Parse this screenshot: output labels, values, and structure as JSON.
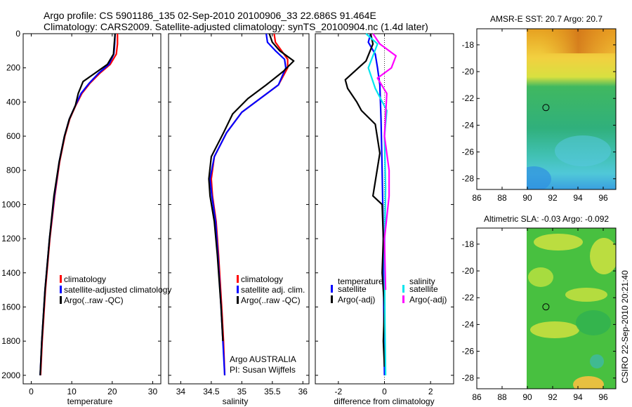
{
  "header": {
    "line1": "Argo profile: CS 5901186_135 02-Sep-2010 20100906_33 22.686S 91.464E",
    "line2": "Climatology: CARS2009. Satellite-adjusted climatology: synTS_20100904.nc (1.4d later)"
  },
  "colors": {
    "climatology": "#ff0000",
    "satellite": "#0000ff",
    "argo": "#000000",
    "salinity_satellite": "#00e5ee",
    "salinity_argo": "#ff00ff"
  },
  "chart_data": [
    {
      "id": "temperature",
      "type": "line",
      "xlabel": "temperature",
      "xlim": [
        -2,
        32
      ],
      "ylim": [
        2050,
        0
      ],
      "xticks": [
        "0",
        "10",
        "20",
        "30"
      ],
      "xtick_values": [
        0,
        10,
        20,
        30
      ],
      "yticks": [
        "0",
        "200",
        "400",
        "600",
        "800",
        "1000",
        "1200",
        "1400",
        "1600",
        "1800",
        "2000"
      ],
      "ytick_values": [
        0,
        200,
        400,
        600,
        800,
        1000,
        1200,
        1400,
        1600,
        1800,
        2000
      ],
      "legend": [
        "climatology",
        "satellite-adjusted climatology",
        "Argo(..raw -QC)"
      ],
      "series": [
        {
          "name": "climatology",
          "color": "#ff0000",
          "x": [
            21.3,
            21.3,
            21.0,
            19.5,
            17.0,
            14.5,
            12.5,
            11.0,
            9.5,
            8.3,
            7.0,
            5.8,
            4.6,
            3.5,
            2.7,
            2.3
          ],
          "y": [
            0,
            60,
            120,
            180,
            230,
            290,
            350,
            420,
            500,
            600,
            750,
            950,
            1200,
            1500,
            1800,
            2000
          ]
        },
        {
          "name": "satellite",
          "color": "#0000ff",
          "x": [
            20.7,
            20.6,
            20.4,
            19.2,
            16.7,
            14.3,
            12.3,
            10.9,
            9.4,
            8.2,
            6.9,
            5.7,
            4.5,
            3.4,
            2.6,
            2.2
          ],
          "y": [
            0,
            60,
            120,
            180,
            230,
            290,
            350,
            420,
            500,
            600,
            750,
            950,
            1200,
            1500,
            1800,
            2000
          ]
        },
        {
          "name": "Argo",
          "color": "#000000",
          "x": [
            20.7,
            20.5,
            20.3,
            18.8,
            15.8,
            12.8,
            11.6,
            10.9,
            9.4,
            8.2,
            6.9,
            5.6,
            4.5,
            3.4,
            2.6,
            2.2
          ],
          "y": [
            0,
            60,
            120,
            180,
            230,
            280,
            350,
            420,
            500,
            600,
            750,
            950,
            1200,
            1500,
            1800,
            2000
          ]
        }
      ]
    },
    {
      "id": "salinity",
      "type": "line",
      "xlabel": "salinity",
      "xlim": [
        33.8,
        36.1
      ],
      "ylim": [
        2050,
        0
      ],
      "xticks": [
        "34",
        "34.5",
        "35",
        "35.5",
        "36"
      ],
      "xtick_values": [
        34,
        34.5,
        35,
        35.5,
        36
      ],
      "legend": [
        "climatology",
        "satellite adj. clim.",
        "Argo(..raw -QC)"
      ],
      "annotation": [
        "Argo AUSTRALIA",
        "PI: Susan Wijffels"
      ],
      "series": [
        {
          "name": "climatology",
          "color": "#ff0000",
          "x": [
            35.53,
            35.55,
            35.65,
            35.75,
            35.75,
            35.6,
            35.3,
            35.0,
            34.75,
            34.55,
            34.5,
            34.52,
            34.58,
            34.62,
            34.67,
            34.7,
            34.72
          ],
          "y": [
            0,
            50,
            100,
            150,
            200,
            300,
            380,
            460,
            580,
            720,
            850,
            950,
            1100,
            1300,
            1600,
            1800,
            2000
          ]
        },
        {
          "name": "satellite",
          "color": "#0000ff",
          "x": [
            35.4,
            35.42,
            35.55,
            35.7,
            35.72,
            35.6,
            35.3,
            35.0,
            34.75,
            34.55,
            34.48,
            34.51,
            34.57,
            34.61,
            34.66,
            34.69,
            34.72
          ],
          "y": [
            0,
            50,
            100,
            150,
            200,
            300,
            380,
            460,
            580,
            720,
            850,
            950,
            1100,
            1300,
            1600,
            1800,
            2000
          ]
        },
        {
          "name": "Argo",
          "color": "#000000",
          "x": [
            35.45,
            35.5,
            35.62,
            35.85,
            35.68,
            35.4,
            35.1,
            34.85,
            34.7,
            34.5,
            34.46,
            34.48,
            34.55,
            34.6,
            34.66,
            34.69
          ],
          "y": [
            0,
            50,
            100,
            160,
            220,
            300,
            380,
            470,
            580,
            720,
            850,
            950,
            1100,
            1300,
            1600,
            1800
          ]
        }
      ]
    },
    {
      "id": "difference",
      "type": "line",
      "xlabel": "difference from climatology",
      "xlim": [
        -3.0,
        3.0
      ],
      "ylim": [
        2050,
        0
      ],
      "xticks": [
        "-2",
        "0",
        "2"
      ],
      "xtick_values": [
        -2,
        0,
        2
      ],
      "legend_headers": [
        "temperature",
        "salinity"
      ],
      "legend": [
        "satellite",
        "Argo(-adj)",
        "satellite",
        "Argo(-adj)"
      ],
      "series": [
        {
          "name": "temperature satellite",
          "color": "#0000ff",
          "x": [
            -0.6,
            -0.7,
            -0.4,
            -0.3,
            -0.2,
            -0.15,
            -0.1,
            -0.05,
            -0.03,
            0.0
          ],
          "y": [
            0,
            50,
            120,
            200,
            300,
            500,
            800,
            1200,
            1600,
            2000
          ]
        },
        {
          "name": "temperature Argo(-adj)",
          "color": "#000000",
          "x": [
            -0.6,
            -0.5,
            -0.8,
            -1.7,
            -1.6,
            -1.2,
            -1.0,
            -0.4,
            -0.2,
            -0.5,
            -0.1,
            -0.05,
            -0.1,
            0.0,
            -0.05,
            0.0
          ],
          "y": [
            0,
            60,
            160,
            270,
            320,
            400,
            450,
            530,
            700,
            950,
            1000,
            1200,
            1400,
            1600,
            1800,
            1950
          ]
        },
        {
          "name": "salinity satellite",
          "color": "#00e5ee",
          "x": [
            -0.8,
            -0.3,
            -0.7,
            -0.4,
            0.1,
            0.0,
            0.05,
            0.0,
            0.02,
            0.05
          ],
          "y": [
            0,
            60,
            200,
            320,
            450,
            600,
            900,
            1300,
            1700,
            2000
          ]
        },
        {
          "name": "salinity Argo(-adj)",
          "color": "#ff00ff",
          "x": [
            -0.5,
            -0.2,
            0.5,
            0.3,
            -0.3,
            0.1,
            0.0,
            0.2,
            0.2,
            0.0,
            0.05
          ],
          "y": [
            0,
            60,
            130,
            200,
            260,
            350,
            600,
            800,
            950,
            1200,
            1500
          ]
        }
      ]
    },
    {
      "id": "amsre-sst-map",
      "type": "heatmap",
      "title": "AMSR-E SST: 20.7 Argo: 20.7",
      "xlim": [
        86,
        97
      ],
      "ylim": [
        -28.8,
        -16.8
      ],
      "xticks": [
        "86",
        "88",
        "90",
        "92",
        "94",
        "96"
      ],
      "xtick_values": [
        86,
        88,
        90,
        92,
        94,
        96
      ],
      "yticks": [
        "-18",
        "-20",
        "-22",
        "-24",
        "-26",
        "-28"
      ],
      "ytick_values": [
        -18,
        -20,
        -22,
        -24,
        -26,
        -28
      ],
      "data_lon_range": [
        90,
        97
      ],
      "float_position": {
        "lon": 91.464,
        "lat": -22.686
      }
    },
    {
      "id": "altimetric-sla-map",
      "type": "heatmap",
      "title": "Altimetric SLA: -0.03 Argo: -0.092",
      "xlim": [
        86,
        97
      ],
      "ylim": [
        -28.8,
        -16.8
      ],
      "xticks": [
        "86",
        "88",
        "90",
        "92",
        "94",
        "96"
      ],
      "xtick_values": [
        86,
        88,
        90,
        92,
        94,
        96
      ],
      "yticks": [
        "-18",
        "-20",
        "-22",
        "-24",
        "-26",
        "-28"
      ],
      "ytick_values": [
        -18,
        -20,
        -22,
        -24,
        -26,
        -28
      ],
      "data_lon_range": [
        90,
        97
      ],
      "float_position": {
        "lon": 91.464,
        "lat": -22.686
      }
    }
  ],
  "footer": {
    "credit": "CSIRO 22-Sep-2010 20:21:40"
  }
}
